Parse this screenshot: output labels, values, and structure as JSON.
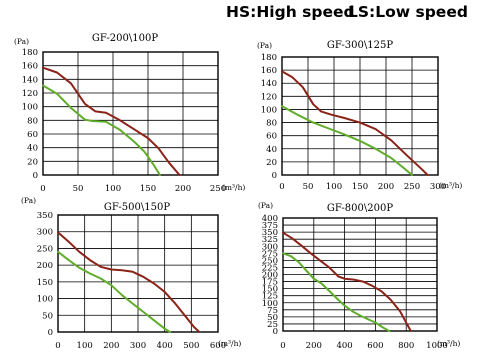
{
  "legend": {
    "hs": "HS:High speed",
    "ls": "LS:Low  speed"
  },
  "colors": {
    "hs": "#8b2318",
    "ls": "#5fad2b",
    "grid": "#000000",
    "frame": "#000000"
  },
  "chart_data": [
    {
      "type": "line",
      "title": "GF-200\\100P",
      "ylabel": "(Pa)",
      "xlabel": "(m³/h)",
      "xlim": [
        0,
        250
      ],
      "ylim": [
        0,
        180
      ],
      "xticks": [
        0,
        50,
        100,
        150,
        200,
        250
      ],
      "yticks": [
        0,
        20,
        40,
        60,
        80,
        100,
        120,
        140,
        160,
        180
      ],
      "grid": true,
      "series": [
        {
          "key": "hs",
          "values": [
            [
              0,
              157
            ],
            [
              20,
              150
            ],
            [
              40,
              134
            ],
            [
              60,
              104
            ],
            [
              75,
              93
            ],
            [
              90,
              91
            ],
            [
              110,
              80
            ],
            [
              130,
              67
            ],
            [
              150,
              54
            ],
            [
              165,
              39
            ],
            [
              180,
              18
            ],
            [
              195,
              0
            ]
          ]
        },
        {
          "key": "ls",
          "values": [
            [
              0,
              131
            ],
            [
              20,
              119
            ],
            [
              40,
              98
            ],
            [
              60,
              81
            ],
            [
              70,
              79
            ],
            [
              90,
              78
            ],
            [
              110,
              66
            ],
            [
              130,
              49
            ],
            [
              145,
              34
            ],
            [
              158,
              15
            ],
            [
              167,
              0
            ]
          ]
        }
      ]
    },
    {
      "type": "line",
      "title": "GF-300\\125P",
      "ylabel": "(Pa)",
      "xlabel": "(m³/h)",
      "xlim": [
        0,
        300
      ],
      "ylim": [
        0,
        180
      ],
      "xticks": [
        0,
        50,
        100,
        150,
        200,
        250,
        300
      ],
      "yticks": [
        0,
        20,
        40,
        60,
        80,
        100,
        120,
        140,
        160,
        180
      ],
      "grid": true,
      "series": [
        {
          "key": "hs",
          "values": [
            [
              0,
              158
            ],
            [
              20,
              149
            ],
            [
              40,
              134
            ],
            [
              60,
              108
            ],
            [
              75,
              97
            ],
            [
              95,
              92
            ],
            [
              120,
              87
            ],
            [
              150,
              80
            ],
            [
              180,
              70
            ],
            [
              210,
              53
            ],
            [
              240,
              30
            ],
            [
              270,
              8
            ],
            [
              280,
              0
            ]
          ]
        },
        {
          "key": "ls",
          "values": [
            [
              0,
              105
            ],
            [
              30,
              92
            ],
            [
              60,
              80
            ],
            [
              90,
              71
            ],
            [
              120,
              62
            ],
            [
              150,
              52
            ],
            [
              180,
              40
            ],
            [
              210,
              26
            ],
            [
              235,
              10
            ],
            [
              250,
              0
            ]
          ]
        }
      ]
    },
    {
      "type": "line",
      "title": "GF-500\\150P",
      "ylabel": "(Pa)",
      "xlabel": "(m³/h)",
      "xlim": [
        0,
        600
      ],
      "ylim": [
        0,
        350
      ],
      "xticks": [
        0,
        100,
        200,
        300,
        400,
        500,
        600
      ],
      "yticks": [
        0,
        50,
        100,
        150,
        200,
        250,
        300,
        350
      ],
      "grid": true,
      "series": [
        {
          "key": "hs",
          "values": [
            [
              0,
              298
            ],
            [
              40,
              270
            ],
            [
              80,
              240
            ],
            [
              120,
              215
            ],
            [
              160,
              195
            ],
            [
              200,
              187
            ],
            [
              240,
              185
            ],
            [
              280,
              180
            ],
            [
              320,
              165
            ],
            [
              360,
              145
            ],
            [
              400,
              120
            ],
            [
              440,
              85
            ],
            [
              480,
              45
            ],
            [
              510,
              15
            ],
            [
              530,
              0
            ]
          ]
        },
        {
          "key": "ls",
          "values": [
            [
              0,
              240
            ],
            [
              40,
              215
            ],
            [
              80,
              192
            ],
            [
              120,
              175
            ],
            [
              160,
              160
            ],
            [
              200,
              140
            ],
            [
              240,
              110
            ],
            [
              280,
              85
            ],
            [
              320,
              60
            ],
            [
              360,
              35
            ],
            [
              400,
              10
            ],
            [
              420,
              0
            ]
          ]
        }
      ]
    },
    {
      "type": "line",
      "title": "GF-800\\200P",
      "ylabel": "(Pa)",
      "xlabel": "(m³/h)",
      "xlim": [
        0,
        1000
      ],
      "ylim": [
        0,
        400
      ],
      "xticks": [
        0,
        200,
        400,
        600,
        800,
        1000
      ],
      "yticks": [
        0,
        25,
        50,
        75,
        100,
        125,
        150,
        175,
        200,
        225,
        250,
        275,
        300,
        325,
        350,
        375,
        400
      ],
      "grid": true,
      "series": [
        {
          "key": "hs",
          "values": [
            [
              0,
              348
            ],
            [
              60,
              328
            ],
            [
              120,
              302
            ],
            [
              180,
              275
            ],
            [
              240,
              250
            ],
            [
              300,
              225
            ],
            [
              360,
              193
            ],
            [
              400,
              185
            ],
            [
              460,
              182
            ],
            [
              520,
              175
            ],
            [
              580,
              160
            ],
            [
              640,
              140
            ],
            [
              700,
              110
            ],
            [
              760,
              70
            ],
            [
              810,
              20
            ],
            [
              830,
              0
            ]
          ]
        },
        {
          "key": "ls",
          "values": [
            [
              0,
              275
            ],
            [
              50,
              265
            ],
            [
              100,
              245
            ],
            [
              150,
              215
            ],
            [
              200,
              185
            ],
            [
              250,
              168
            ],
            [
              300,
              142
            ],
            [
              350,
              115
            ],
            [
              400,
              90
            ],
            [
              450,
              70
            ],
            [
              500,
              55
            ],
            [
              550,
              42
            ],
            [
              600,
              30
            ],
            [
              650,
              12
            ],
            [
              690,
              0
            ]
          ]
        }
      ]
    }
  ]
}
